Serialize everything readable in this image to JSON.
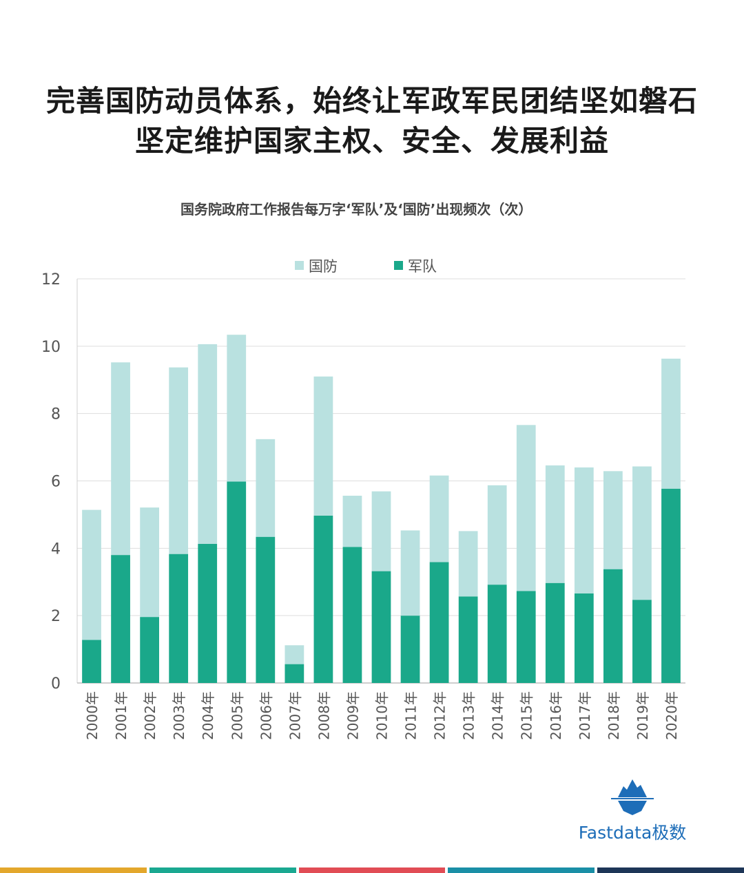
{
  "header": {
    "line1": "完善国防动员体系，始终让军政军民团结坚如磐石",
    "line2": "坚定维护国家主权、安全、发展利益"
  },
  "brand": {
    "label": "Fastdata极数",
    "logo_icon": "iceberg-logo-icon",
    "color": "#1d6db8"
  },
  "footer": {
    "stripe_colors": [
      "#e3a72c",
      "#1aa891",
      "#e14c55",
      "#1a8fa6",
      "#1d3557"
    ]
  },
  "chart_data": {
    "type": "bar",
    "stacked": true,
    "title": "国务院政府工作报告每万字‘军队’及‘国防’出现频次（次）",
    "xlabel": "",
    "ylabel": "",
    "ylim": [
      0,
      12
    ],
    "yticks": [
      0,
      2,
      4,
      6,
      8,
      10,
      12
    ],
    "grid": true,
    "legend_position": "top",
    "categories": [
      "2000年",
      "2001年",
      "2002年",
      "2003年",
      "2004年",
      "2005年",
      "2006年",
      "2007年",
      "2008年",
      "2009年",
      "2010年",
      "2011年",
      "2012年",
      "2013年",
      "2014年",
      "2015年",
      "2016年",
      "2017年",
      "2018年",
      "2019年",
      "2020年"
    ],
    "series": [
      {
        "name": "军队",
        "color": "#1aa88a",
        "values": [
          1.28,
          3.8,
          1.96,
          3.83,
          4.13,
          5.98,
          4.34,
          0.56,
          4.97,
          4.04,
          3.32,
          2.0,
          3.59,
          2.57,
          2.92,
          2.73,
          2.97,
          2.66,
          3.38,
          2.47,
          5.77
        ]
      },
      {
        "name": "国防",
        "color": "#b9e1e0",
        "values": [
          3.86,
          5.72,
          3.25,
          5.54,
          5.93,
          4.36,
          2.9,
          0.56,
          4.13,
          1.52,
          2.37,
          2.53,
          2.57,
          1.94,
          2.95,
          4.93,
          3.49,
          3.74,
          2.91,
          3.96,
          3.86
        ]
      }
    ]
  }
}
